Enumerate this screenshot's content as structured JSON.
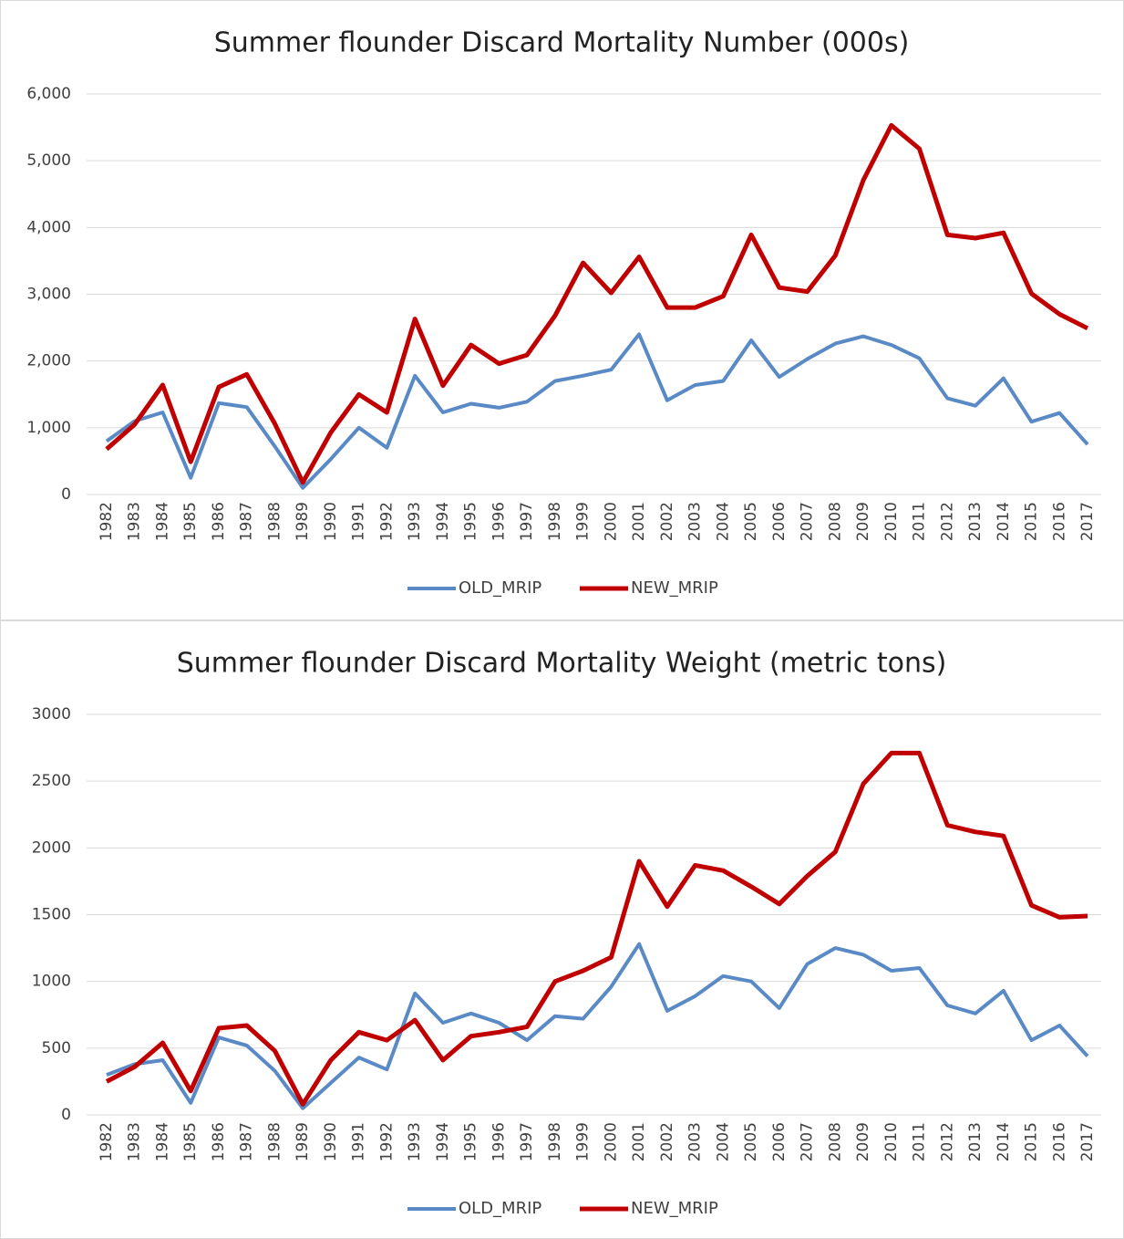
{
  "chart_data": [
    {
      "type": "line",
      "title": "Summer flounder Discard Mortality Number (000s)",
      "categories": [
        "1982",
        "1983",
        "1984",
        "1985",
        "1986",
        "1987",
        "1988",
        "1989",
        "1990",
        "1991",
        "1992",
        "1993",
        "1994",
        "1995",
        "1996",
        "1997",
        "1998",
        "1999",
        "2000",
        "2001",
        "2002",
        "2003",
        "2004",
        "2005",
        "2006",
        "2007",
        "2008",
        "2009",
        "2010",
        "2011",
        "2012",
        "2013",
        "2014",
        "2015",
        "2016",
        "2017"
      ],
      "series": [
        {
          "name": "OLD_MRIP",
          "color": "#5a8ac6",
          "values": [
            800,
            1100,
            1230,
            250,
            1370,
            1310,
            720,
            100,
            530,
            1000,
            700,
            1780,
            1230,
            1360,
            1300,
            1390,
            1700,
            1780,
            1870,
            2400,
            1410,
            1640,
            1700,
            2310,
            1760,
            2030,
            2260,
            2370,
            2240,
            2040,
            1440,
            1330,
            1740,
            1090,
            1220,
            750
          ]
        },
        {
          "name": "NEW_MRIP",
          "color": "#c00000",
          "values": [
            680,
            1050,
            1640,
            490,
            1610,
            1800,
            1060,
            180,
            930,
            1500,
            1230,
            2630,
            1630,
            2240,
            1960,
            2090,
            2680,
            3470,
            3020,
            3560,
            2800,
            2800,
            2970,
            3890,
            3100,
            3040,
            3580,
            4710,
            5530,
            5180,
            3890,
            3840,
            3920,
            3010,
            2700,
            2490
          ]
        }
      ],
      "ylim": [
        0,
        6000
      ],
      "yticks": [
        0,
        {
          "value": 1000,
          "label": "1,000"
        },
        {
          "value": 2000,
          "label": "2,000"
        },
        {
          "value": 3000,
          "label": "3,000"
        },
        {
          "value": 4000,
          "label": "4,000"
        },
        {
          "value": 5000,
          "label": "5,000"
        },
        {
          "value": 6000,
          "label": "6,000"
        }
      ],
      "grid": true,
      "legend": "bottom"
    },
    {
      "type": "line",
      "title": "Summer flounder Discard Mortality Weight (metric tons)",
      "categories": [
        "1982",
        "1983",
        "1984",
        "1985",
        "1986",
        "1987",
        "1988",
        "1989",
        "1990",
        "1991",
        "1992",
        "1993",
        "1994",
        "1995",
        "1996",
        "1997",
        "1998",
        "1999",
        "2000",
        "2001",
        "2002",
        "2003",
        "2004",
        "2005",
        "2006",
        "2007",
        "2008",
        "2009",
        "2010",
        "2011",
        "2012",
        "2013",
        "2014",
        "2015",
        "2016",
        "2017"
      ],
      "series": [
        {
          "name": "OLD_MRIP",
          "color": "#5a8ac6",
          "values": [
            300,
            380,
            410,
            90,
            580,
            520,
            330,
            50,
            240,
            430,
            340,
            910,
            690,
            760,
            690,
            560,
            740,
            720,
            960,
            1280,
            780,
            890,
            1040,
            1000,
            800,
            1130,
            1250,
            1200,
            1080,
            1100,
            820,
            760,
            930,
            560,
            670,
            440
          ]
        },
        {
          "name": "NEW_MRIP",
          "color": "#c00000",
          "values": [
            250,
            360,
            540,
            180,
            650,
            670,
            480,
            80,
            410,
            620,
            560,
            710,
            410,
            590,
            620,
            660,
            1000,
            1080,
            1180,
            1900,
            1560,
            1870,
            1830,
            1710,
            1580,
            1790,
            1970,
            2480,
            2710,
            2710,
            2170,
            2120,
            2090,
            1570,
            1480,
            1490
          ]
        }
      ],
      "ylim": [
        0,
        3000
      ],
      "yticks": [
        0,
        500,
        1000,
        1500,
        2000,
        2500,
        3000
      ],
      "grid": true,
      "legend": "bottom"
    }
  ]
}
